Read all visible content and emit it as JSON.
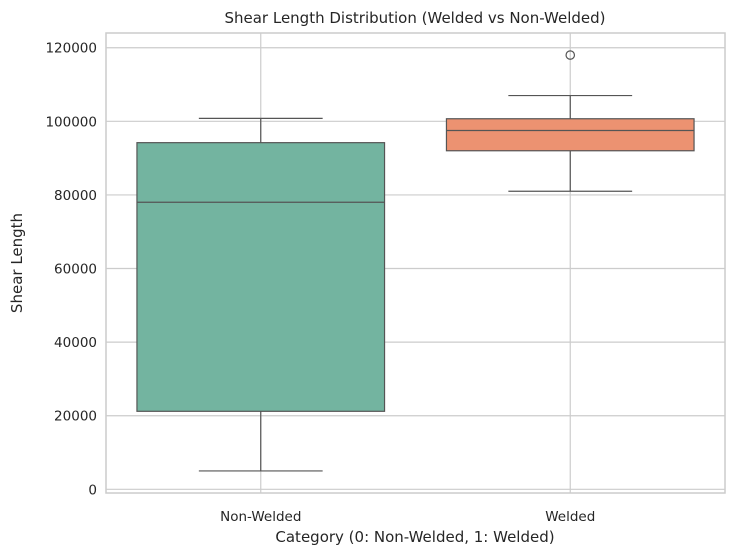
{
  "chart_data": {
    "type": "boxplot",
    "title": "Shear Length Distribution (Welded vs Non-Welded)",
    "xlabel": "Category (0: Non-Welded, 1: Welded)",
    "ylabel": "Shear Length",
    "ylim": [
      -1000,
      124000
    ],
    "yticks": [
      0,
      20000,
      40000,
      60000,
      80000,
      100000,
      120000
    ],
    "grid": true,
    "categories": [
      "Non-Welded",
      "Welded"
    ],
    "boxes": [
      {
        "category": "Non-Welded",
        "whisker_low": 5000,
        "q1": 21200,
        "median": 78000,
        "q3": 94200,
        "whisker_high": 100800,
        "outliers": [],
        "color": "#73b4a0"
      },
      {
        "category": "Welded",
        "whisker_low": 81000,
        "q1": 92000,
        "median": 97500,
        "q3": 100700,
        "whisker_high": 107000,
        "outliers": [
          118000
        ],
        "color": "#ec9271"
      }
    ]
  }
}
